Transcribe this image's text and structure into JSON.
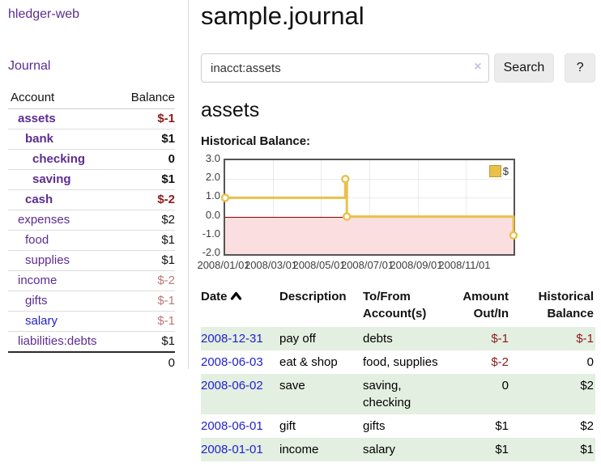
{
  "app": {
    "title": "hledger-web",
    "journal_link": "Journal"
  },
  "sidebar": {
    "headers": {
      "account": "Account",
      "balance": "Balance"
    },
    "rows": [
      {
        "name": "assets",
        "balance": "$-1",
        "level": 1,
        "current": true,
        "neg": "strong"
      },
      {
        "name": "bank",
        "balance": "$1",
        "level": 2,
        "current": true,
        "neg": ""
      },
      {
        "name": "checking",
        "balance": "0",
        "level": 3,
        "current": true,
        "neg": ""
      },
      {
        "name": "saving",
        "balance": "$1",
        "level": 3,
        "current": true,
        "neg": ""
      },
      {
        "name": "cash",
        "balance": "$-2",
        "level": 2,
        "current": true,
        "neg": "strong"
      },
      {
        "name": "expenses",
        "balance": "$2",
        "level": 1,
        "current": false,
        "neg": ""
      },
      {
        "name": "food",
        "balance": "$1",
        "level": 2,
        "current": false,
        "neg": ""
      },
      {
        "name": "supplies",
        "balance": "$1",
        "level": 2,
        "current": false,
        "neg": ""
      },
      {
        "name": "income",
        "balance": "$-2",
        "level": 1,
        "current": false,
        "neg": "soft"
      },
      {
        "name": "gifts",
        "balance": "$-1",
        "level": 2,
        "current": false,
        "neg": "soft"
      },
      {
        "name": "salary",
        "balance": "$-1",
        "level": 2,
        "current": false,
        "neg": "soft",
        "link": "blue"
      },
      {
        "name": "liabilities:debts",
        "balance": "$1",
        "level": 1,
        "current": false,
        "neg": ""
      }
    ],
    "total": "0"
  },
  "main": {
    "title": "sample.journal",
    "search": {
      "value": "inacct:assets",
      "clear_icon": "×",
      "search_button": "Search",
      "help_button": "?"
    },
    "heading": "assets",
    "chart_title": "Historical Balance:"
  },
  "chart_data": {
    "type": "line",
    "step": true,
    "title": "Historical Balance",
    "xlim": [
      "2008-01-01",
      "2008-12-31"
    ],
    "ylim": [
      -2,
      3
    ],
    "yticks": [
      "3.0",
      "2.0",
      "1.0",
      "0.0",
      "-1.0",
      "-2.0"
    ],
    "xtick_labels": [
      "2008/01/01",
      "2008/03/01",
      "2008/05/01",
      "2008/07/01",
      "2008/09/01",
      "2008/11/01"
    ],
    "xtick_dates": [
      "2008-01-01",
      "2008-03-01",
      "2008-05-01",
      "2008-07-01",
      "2008-09-01",
      "2008-11-01"
    ],
    "grid": true,
    "legend": {
      "position": "top-right"
    },
    "line_color": "#e9c04a",
    "marker_fill": "#ffffff",
    "negative_fill": "#fbdee0",
    "zero_line_color": "#8e0000",
    "series": [
      {
        "name": "$",
        "color": "#e9c04a",
        "points": [
          {
            "x": "2008-01-01",
            "y": 1
          },
          {
            "x": "2008-06-01",
            "y": 2
          },
          {
            "x": "2008-06-03",
            "y": 0
          },
          {
            "x": "2008-12-31",
            "y": -1
          }
        ]
      }
    ]
  },
  "transactions": {
    "headers": {
      "date": "Date",
      "description": "Description",
      "accounts": "To/From Account(s)",
      "amount": "Amount Out/In",
      "balance": "Historical Balance"
    },
    "rows": [
      {
        "date": "2008-12-31",
        "description": "pay off",
        "accounts": "debts",
        "amount": "$-1",
        "balance": "$-1",
        "amount_neg": true,
        "balance_neg": true
      },
      {
        "date": "2008-06-03",
        "description": "eat & shop",
        "accounts": "food, supplies",
        "amount": "$-2",
        "balance": "0",
        "amount_neg": true,
        "balance_neg": false
      },
      {
        "date": "2008-06-02",
        "description": "save",
        "accounts": "saving, checking",
        "amount": "0",
        "balance": "$2",
        "amount_neg": false,
        "balance_neg": false
      },
      {
        "date": "2008-06-01",
        "description": "gift",
        "accounts": "gifts",
        "amount": "$1",
        "balance": "$2",
        "amount_neg": false,
        "balance_neg": false
      },
      {
        "date": "2008-01-01",
        "description": "income",
        "accounts": "salary",
        "amount": "$1",
        "balance": "$1",
        "amount_neg": false,
        "balance_neg": false
      }
    ]
  }
}
